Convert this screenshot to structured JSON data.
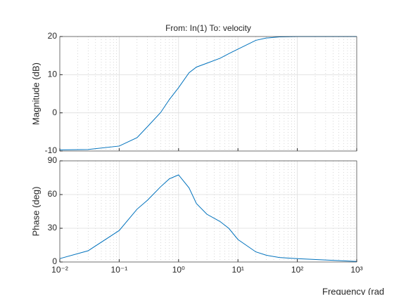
{
  "chart_data": [
    {
      "type": "line",
      "title": "From: In(1)  To: velocity",
      "ylabel": "Magnitude (dB)",
      "log_x": true,
      "grid": true,
      "xlim": [
        0.01,
        1000
      ],
      "xticks": [
        {
          "value": 0.01,
          "label": "10⁻²"
        },
        {
          "value": 0.1,
          "label": "10⁻¹"
        },
        {
          "value": 1,
          "label": "10⁰"
        },
        {
          "value": 10,
          "label": "10¹"
        },
        {
          "value": 100,
          "label": "10²"
        },
        {
          "value": 1000,
          "label": "10³"
        }
      ],
      "ylim": [
        -10,
        20
      ],
      "yticks": [
        -10,
        0,
        10,
        20
      ],
      "x": [
        0.01,
        0.03,
        0.1,
        0.2,
        0.3,
        0.5,
        0.7,
        1,
        1.5,
        2,
        3,
        5,
        7,
        10,
        20,
        30,
        50,
        100,
        1000
      ],
      "series": [
        {
          "color": "#0072BD",
          "values": [
            -9.7,
            -9.6,
            -8.7,
            -6.5,
            -3.6,
            0.1,
            3.5,
            6.6,
            10.5,
            12,
            13,
            14.3,
            15.5,
            16.7,
            19,
            19.6,
            19.9,
            20,
            20
          ]
        }
      ]
    },
    {
      "type": "line",
      "ylabel": "Phase (deg)",
      "xlabel": "Frequency  (rad",
      "log_x": true,
      "grid": true,
      "xlim": [
        0.01,
        1000
      ],
      "xticks": [
        {
          "value": 0.01,
          "label": "10⁻²"
        },
        {
          "value": 0.1,
          "label": "10⁻¹"
        },
        {
          "value": 1,
          "label": "10⁰"
        },
        {
          "value": 10,
          "label": "10¹"
        },
        {
          "value": 100,
          "label": "10²"
        },
        {
          "value": 1000,
          "label": "10³"
        }
      ],
      "ylim": [
        0,
        90
      ],
      "yticks": [
        0,
        30,
        60,
        90
      ],
      "x": [
        0.01,
        0.03,
        0.1,
        0.2,
        0.3,
        0.5,
        0.7,
        1,
        1.5,
        2,
        3,
        5,
        7,
        10,
        20,
        30,
        50,
        100,
        1000
      ],
      "series": [
        {
          "color": "#0072BD",
          "values": [
            3,
            10,
            28,
            47,
            55,
            67,
            74,
            77.5,
            66,
            52,
            42.5,
            36,
            30,
            20,
            9,
            6,
            4,
            3,
            0.5
          ]
        }
      ]
    }
  ]
}
